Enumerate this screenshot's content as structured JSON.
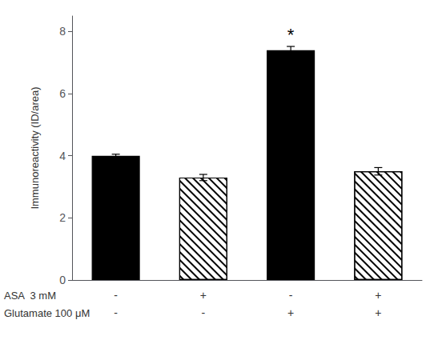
{
  "chart_data": {
    "type": "bar",
    "ylabel": "Immunoreactivity (ID/area)",
    "categories": [
      null,
      null,
      null,
      null
    ],
    "values": [
      4.0,
      3.3,
      7.4,
      3.5
    ],
    "errors": [
      0.05,
      0.1,
      0.12,
      0.12
    ],
    "colors": [
      "#000000",
      "#ffffff",
      "#000000",
      "#ffffff"
    ],
    "ylim": [
      0,
      8.5
    ],
    "yticks": [
      0,
      2,
      4,
      6,
      8
    ],
    "grid": false,
    "x_label_rows": [
      {
        "label": "ASA  3 mM",
        "values": [
          "-",
          "+",
          "-",
          "+"
        ]
      },
      {
        "label": "Glutamate 100 μM",
        "values": [
          "-",
          "-",
          "+",
          "+"
        ]
      }
    ],
    "annotations": [
      {
        "text": "*",
        "index": 2
      }
    ]
  }
}
